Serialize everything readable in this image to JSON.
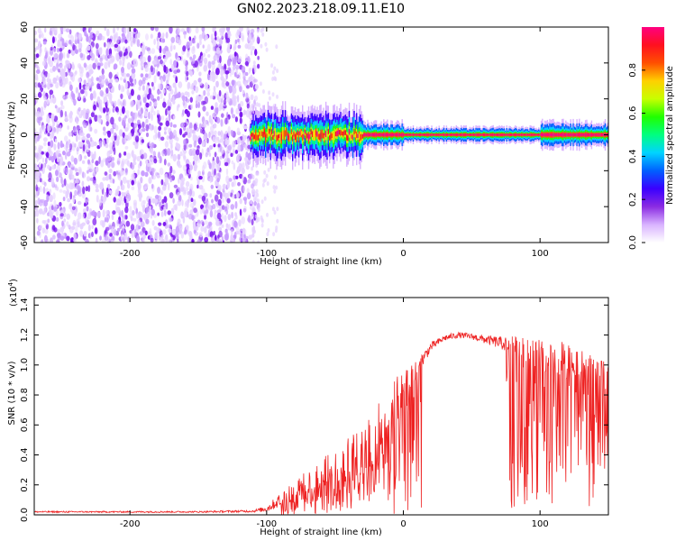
{
  "title": "GN02.2023.218.09.11.E10",
  "colors": {
    "snr_line": "#ee2222",
    "dots": "#7a16ee",
    "colorbar": [
      "#ffffff",
      "#d9b3ff",
      "#8a2be2",
      "#3a00ff",
      "#0060ff",
      "#00d4ff",
      "#00ff80",
      "#20ff00",
      "#c8ff00",
      "#ffd000",
      "#ff5000",
      "#ff1020",
      "#ff0080"
    ]
  },
  "chart_data": [
    {
      "type": "heatmap",
      "xlabel": "Height of straight line (km)",
      "ylabel": "Frequency (Hz)",
      "xlim": [
        -270,
        150
      ],
      "ylim": [
        -60,
        60
      ],
      "xticks": [
        -200,
        -100,
        0,
        100
      ],
      "yticks": [
        -60,
        -40,
        -20,
        0,
        20,
        40,
        60
      ],
      "colorbar": {
        "label": "Normalized spectral amplitude",
        "range": [
          0,
          1
        ],
        "ticks": [
          "0.0",
          "0.2",
          "0.4",
          "0.6",
          "0.8"
        ]
      },
      "regions": [
        {
          "x_from": -270,
          "x_to": -112,
          "description_level": 0.15
        },
        {
          "x_from": -112,
          "x_to": 150,
          "center_frequency_hz": 0,
          "peak_level": 1.0
        }
      ]
    },
    {
      "type": "line",
      "xlabel": "Height of straight line (km)",
      "ylabel": "SNR (10 * v/v)",
      "y_multiplier": "(x10",
      "y_multiplier_exp": "4",
      "y_multiplier_close": ")",
      "xlim": [
        -270,
        150
      ],
      "ylim": [
        0,
        1.45
      ],
      "xticks": [
        -200,
        -100,
        0,
        100
      ],
      "yticks": [
        "0.0",
        "0.2",
        "0.4",
        "0.6",
        "0.8",
        "1.0",
        "1.2",
        "1.4"
      ],
      "series": [
        {
          "x": [
            -270,
            -250,
            -200,
            -150,
            -110,
            -100,
            -90,
            -80,
            -70,
            -60,
            -50,
            -40,
            -30,
            -20,
            -10,
            0,
            10,
            20,
            30,
            40,
            50,
            60,
            70,
            80,
            90,
            100,
            110,
            120,
            130,
            140,
            150
          ],
          "y": [
            0.02,
            0.02,
            0.02,
            0.02,
            0.025,
            0.04,
            0.1,
            0.16,
            0.2,
            0.25,
            0.3,
            0.35,
            0.4,
            0.5,
            0.65,
            0.8,
            0.98,
            1.12,
            1.18,
            1.2,
            1.19,
            1.17,
            1.15,
            1.13,
            1.1,
            1.07,
            1.05,
            1.03,
            1.0,
            0.97,
            0.95
          ],
          "noise": [
            0.005,
            0.005,
            0.005,
            0.005,
            0.008,
            0.02,
            0.05,
            0.08,
            0.1,
            0.12,
            0.15,
            0.18,
            0.2,
            0.25,
            0.25,
            0.15,
            0.06,
            0.03,
            0.02,
            0.02,
            0.02,
            0.03,
            0.04,
            0.06,
            0.08,
            0.1,
            0.12,
            0.12,
            0.1,
            0.08,
            0.06
          ]
        }
      ]
    }
  ]
}
